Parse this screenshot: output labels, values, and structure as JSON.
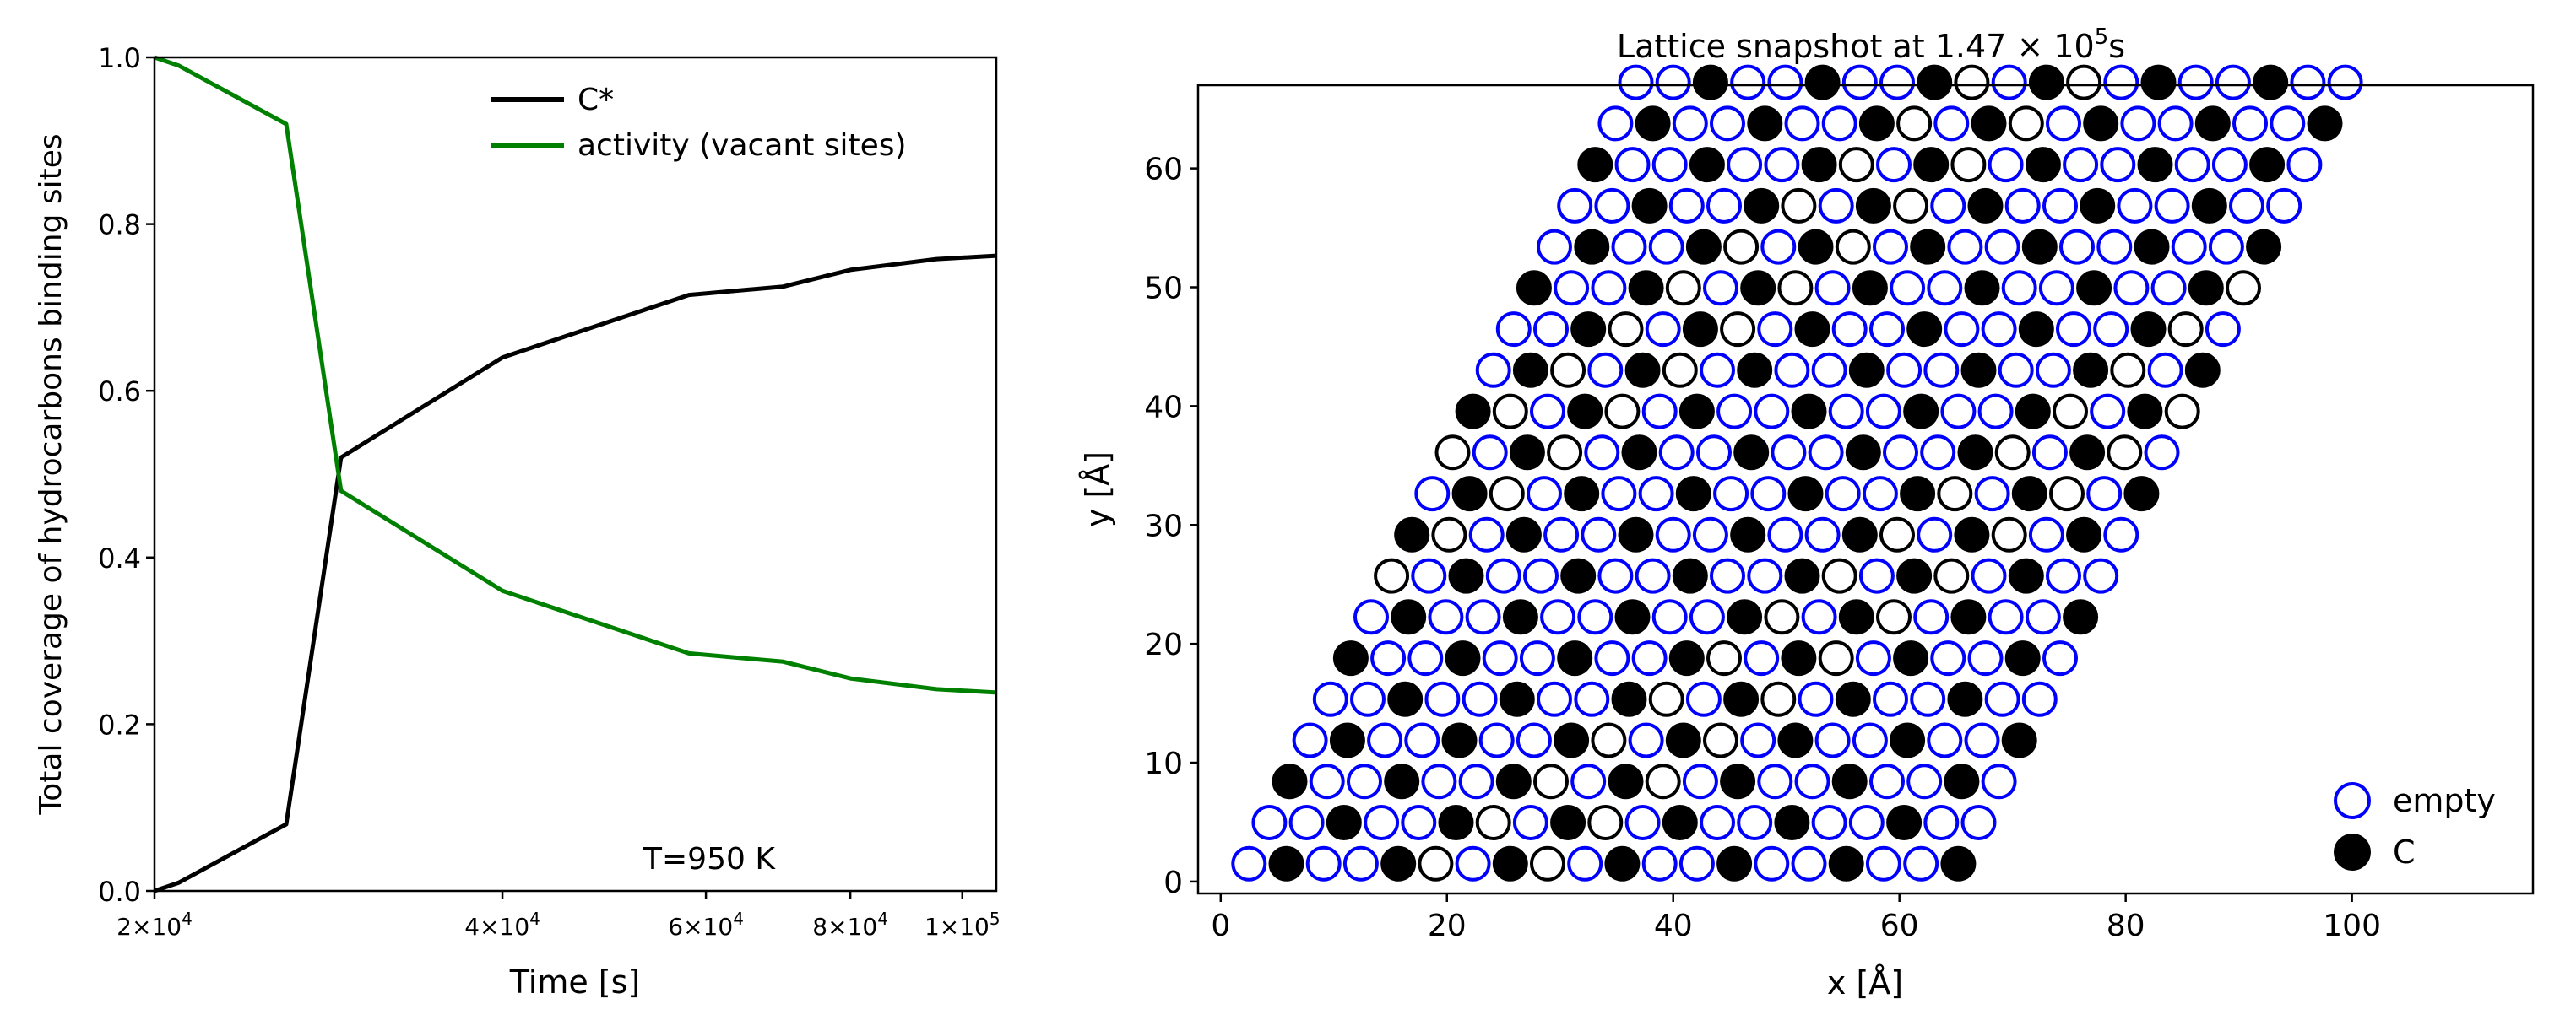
{
  "chart_data": [
    {
      "type": "line",
      "title": "",
      "xlabel": "Time [s]",
      "ylabel": "Total coverage of hydrocarbons binding sites",
      "xscale": "log",
      "xlim": [
        20000,
        107000
      ],
      "ylim": [
        0.0,
        1.0
      ],
      "xticks": [
        {
          "value": 20000,
          "base": "2",
          "exp": "4"
        },
        {
          "value": 40000,
          "base": "4",
          "exp": "4"
        },
        {
          "value": 60000,
          "base": "6",
          "exp": "4"
        },
        {
          "value": 80000,
          "base": "8",
          "exp": "4"
        },
        {
          "value": 100000,
          "base": "1",
          "exp": "5"
        }
      ],
      "yticks": [
        "0.0",
        "0.2",
        "0.4",
        "0.6",
        "0.8",
        "1.0"
      ],
      "legend_position": "top-right",
      "annotation": "T=950 K",
      "series": [
        {
          "name": "C*",
          "color": "#000000",
          "x": [
            20000,
            21000,
            26000,
            29000,
            40000,
            58000,
            70000,
            80000,
            95000,
            107000
          ],
          "y": [
            0.0,
            0.01,
            0.08,
            0.52,
            0.64,
            0.715,
            0.725,
            0.745,
            0.758,
            0.762
          ]
        },
        {
          "name": "activity (vacant sites)",
          "color": "#008000",
          "x": [
            20000,
            21000,
            26000,
            29000,
            40000,
            58000,
            70000,
            80000,
            95000,
            107000
          ],
          "y": [
            1.0,
            0.99,
            0.92,
            0.48,
            0.36,
            0.285,
            0.275,
            0.255,
            0.242,
            0.238
          ]
        }
      ]
    },
    {
      "type": "scatter",
      "title_prefix": "Lattice snapshot at 1.47",
      "title_times": "×",
      "title_base": "10",
      "title_exp": "5",
      "title_unit": "s",
      "xlabel": "x [Å]",
      "ylabel": "y [Å]",
      "xlim": [
        -2,
        116
      ],
      "ylim": [
        -1,
        67
      ],
      "xticks": [
        0,
        20,
        40,
        60,
        80,
        100
      ],
      "yticks": [
        0,
        10,
        20,
        30,
        40,
        50,
        60
      ],
      "legend_position": "bottom-right",
      "lattice": {
        "rows": 20,
        "cols": 20,
        "a": 3.3,
        "row_dx": 1.8,
        "row_dy": 3.46,
        "origin": [
          2.5,
          1.5
        ]
      },
      "series": [
        {
          "name": "empty",
          "marker": "open-circle",
          "color": "#0000ff"
        },
        {
          "name": "C",
          "marker": "filled-circle",
          "color": "#000000"
        }
      ]
    }
  ]
}
